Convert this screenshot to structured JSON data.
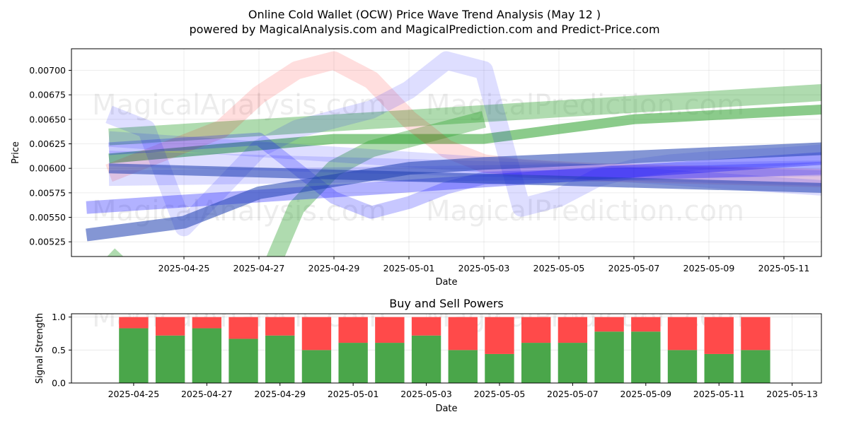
{
  "title_line1": "Online Cold Wallet (OCW) Price Wave Trend Analysis (May 12 )",
  "title_line2": "powered by MagicalAnalysis.com and MagicalPrediction.com and Predict-Price.com",
  "watermarks": [
    "MagicalAnalysis.com",
    "MagicalPrediction.com"
  ],
  "chart_data": [
    {
      "type": "line",
      "xlabel": "Date",
      "ylabel": "Price",
      "x_start": "2025-04-23",
      "xlim": [
        "2025-04-22",
        "2025-05-12"
      ],
      "ylim": [
        0.0051,
        0.00722
      ],
      "yticks": [
        0.00525,
        0.0055,
        0.00575,
        0.006,
        0.00625,
        0.0065,
        0.00675,
        0.007
      ],
      "ytick_labels": [
        "0.00525",
        "0.00550",
        "0.00575",
        "0.00600",
        "0.00625",
        "0.00650",
        "0.00675",
        "0.00700"
      ],
      "xtick_labels": [
        "2025-04-25",
        "2025-04-27",
        "2025-04-29",
        "2025-05-01",
        "2025-05-03",
        "2025-05-05",
        "2025-05-07",
        "2025-05-09",
        "2025-05-11"
      ],
      "grid": true,
      "series": [
        {
          "color": "#2ca02c",
          "opacity": 0.38,
          "width": 24,
          "x": [
            0,
            19.3
          ],
          "y": [
            0.00632,
            0.00678
          ]
        },
        {
          "color": "#2ca02c",
          "opacity": 0.38,
          "width": 24,
          "x": [
            0,
            2,
            4,
            5,
            6,
            7,
            8,
            9,
            10
          ],
          "y": [
            0.00512,
            0.0044,
            0.0047,
            0.0056,
            0.006,
            0.0062,
            0.0063,
            0.0064,
            0.0065
          ]
        },
        {
          "color": "#2ca02c",
          "opacity": 0.55,
          "width": 14,
          "x": [
            0,
            6,
            10,
            11,
            12,
            13,
            14,
            15,
            16,
            17,
            18,
            19
          ],
          "y": [
            0.0061,
            0.0063,
            0.0063,
            0.00635,
            0.0064,
            0.00645,
            0.0065,
            0.00652,
            0.00654,
            0.00656,
            0.00658,
            0.0066
          ]
        },
        {
          "color": "#ff0000",
          "opacity": 0.13,
          "width": 26,
          "x": [
            0,
            3,
            4,
            5,
            6,
            7,
            8,
            9,
            10,
            11,
            12,
            13,
            14,
            15,
            16,
            17,
            18,
            19
          ],
          "y": [
            0.00595,
            0.0064,
            0.00675,
            0.007,
            0.0071,
            0.0069,
            0.0065,
            0.0062,
            0.00605,
            0.006,
            0.00598,
            0.00596,
            0.00595,
            0.00594,
            0.00593,
            0.00592,
            0.00591,
            0.0059
          ]
        },
        {
          "color": "#0000ff",
          "opacity": 0.13,
          "width": 26,
          "x": [
            0,
            1,
            2,
            3,
            4,
            5,
            6,
            7,
            8,
            9,
            10,
            11,
            12,
            13,
            14,
            15,
            16,
            17,
            18,
            19
          ],
          "y": [
            0.00655,
            0.0064,
            0.0054,
            0.0058,
            0.0062,
            0.0064,
            0.0065,
            0.0066,
            0.0068,
            0.0071,
            0.007,
            0.0056,
            0.0057,
            0.0059,
            0.006,
            0.00605,
            0.00608,
            0.0061,
            0.00612,
            0.00615
          ]
        },
        {
          "color": "#0000ff",
          "opacity": 0.13,
          "width": 22,
          "x": [
            0,
            19
          ],
          "y": [
            0.0063,
            0.0058
          ]
        },
        {
          "color": "#0000ff",
          "opacity": 0.13,
          "width": 22,
          "x": [
            0,
            19
          ],
          "y": [
            0.0061,
            0.0059
          ]
        },
        {
          "color": "#0000ff",
          "opacity": 0.13,
          "width": 22,
          "x": [
            0,
            19
          ],
          "y": [
            0.0059,
            0.006
          ]
        },
        {
          "color": "#0000ff",
          "opacity": 0.22,
          "width": 18,
          "x": [
            0,
            4,
            6,
            7,
            8,
            9,
            10,
            19
          ],
          "y": [
            0.0062,
            0.0063,
            0.0057,
            0.00555,
            0.00565,
            0.0058,
            0.0059,
            0.006
          ]
        },
        {
          "color": "#0000ff",
          "opacity": 0.3,
          "width": 18,
          "x": [
            -0.6,
            19
          ],
          "y": [
            0.0056,
            0.0061
          ]
        },
        {
          "color": "#1f3fb0",
          "opacity": 0.55,
          "width": 18,
          "x": [
            -0.6,
            2,
            4,
            8,
            10,
            19
          ],
          "y": [
            0.00532,
            0.00545,
            0.00575,
            0.006,
            0.00605,
            0.0062
          ]
        },
        {
          "color": "#1f3fb0",
          "opacity": 0.55,
          "width": 14,
          "x": [
            0,
            19
          ],
          "y": [
            0.006,
            0.0058
          ]
        }
      ]
    },
    {
      "type": "bar",
      "title": "Buy and Sell Powers",
      "xlabel": "Date",
      "ylabel": "Signal Strength",
      "ylim": [
        0,
        1.05
      ],
      "yticks": [
        0.0,
        0.5,
        1.0
      ],
      "ytick_labels": [
        "0.0",
        "0.5",
        "1.0"
      ],
      "xtick_labels": [
        "2025-04-25",
        "2025-04-27",
        "2025-04-29",
        "2025-05-01",
        "2025-05-03",
        "2025-05-05",
        "2025-05-07",
        "2025-05-09",
        "2025-05-11",
        "2025-05-13"
      ],
      "categories": [
        "2025-04-25",
        "2025-04-26",
        "2025-04-27",
        "2025-04-28",
        "2025-04-29",
        "2025-04-30",
        "2025-05-01",
        "2025-05-02",
        "2025-05-03",
        "2025-05-04",
        "2025-05-05",
        "2025-05-06",
        "2025-05-07",
        "2025-05-08",
        "2025-05-09",
        "2025-05-10",
        "2025-05-11",
        "2025-05-12"
      ],
      "series": [
        {
          "color": "#4aa64a",
          "values": [
            0.83,
            0.72,
            0.83,
            0.67,
            0.72,
            0.5,
            0.61,
            0.61,
            0.72,
            0.5,
            0.44,
            0.61,
            0.61,
            0.78,
            0.78,
            0.5,
            0.44,
            0.5
          ]
        },
        {
          "color": "#ff4a4a",
          "values": [
            0.17,
            0.28,
            0.17,
            0.33,
            0.28,
            0.5,
            0.39,
            0.39,
            0.28,
            0.5,
            0.56,
            0.39,
            0.39,
            0.22,
            0.22,
            0.5,
            0.56,
            0.5
          ]
        }
      ],
      "grid": true
    }
  ]
}
